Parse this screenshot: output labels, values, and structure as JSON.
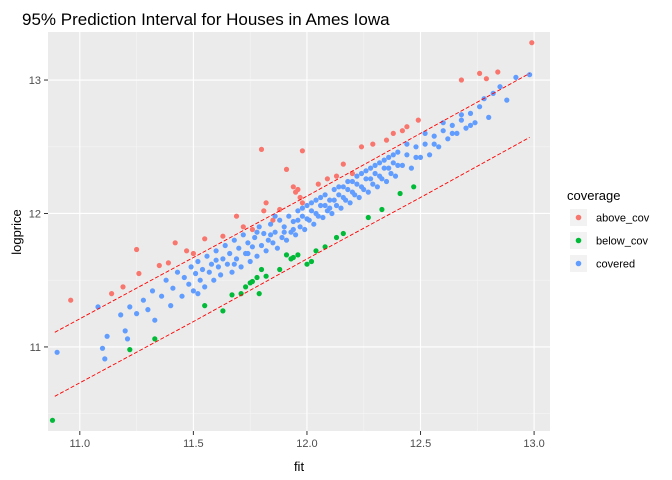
{
  "chart_data": {
    "type": "scatter",
    "title": "95% Prediction Interval for Houses in Ames Iowa",
    "xlabel": "fit",
    "ylabel": "logprice",
    "xlim": [
      10.86,
      13.07
    ],
    "ylim": [
      10.37,
      13.36
    ],
    "x_ticks": [
      11.0,
      11.5,
      12.0,
      12.5,
      13.0
    ],
    "x_tick_labels": [
      "11.0",
      "11.5",
      "12.0",
      "12.5",
      "13.0"
    ],
    "y_ticks": [
      11,
      12,
      13
    ],
    "y_tick_labels": [
      "11",
      "12",
      "13"
    ],
    "grid": true,
    "legend": {
      "title": "coverage",
      "placement": "right",
      "entries": [
        {
          "label": "above_cov",
          "color": "#F8766D"
        },
        {
          "label": "below_cov",
          "color": "#00BA38"
        },
        {
          "label": "covered",
          "color": "#619CFF"
        }
      ]
    },
    "interval_lines": {
      "color": "#FF0000",
      "style": "dashed",
      "upper": [
        [
          10.89,
          11.11
        ],
        [
          11.5,
          11.67
        ],
        [
          12.0,
          12.13
        ],
        [
          12.5,
          12.6
        ],
        [
          12.98,
          13.05
        ]
      ],
      "lower": [
        [
          10.89,
          10.63
        ],
        [
          11.5,
          11.19
        ],
        [
          12.0,
          11.66
        ],
        [
          12.5,
          12.12
        ],
        [
          12.98,
          12.57
        ]
      ]
    },
    "series": [
      {
        "name": "above_cov",
        "color": "#F8766D",
        "points": [
          [
            10.96,
            11.35
          ],
          [
            11.14,
            11.4
          ],
          [
            11.19,
            11.45
          ],
          [
            11.25,
            11.73
          ],
          [
            11.26,
            11.55
          ],
          [
            11.35,
            11.61
          ],
          [
            11.39,
            11.63
          ],
          [
            11.42,
            11.78
          ],
          [
            11.47,
            11.72
          ],
          [
            11.5,
            11.7
          ],
          [
            11.55,
            11.81
          ],
          [
            11.63,
            11.83
          ],
          [
            11.69,
            11.98
          ],
          [
            11.72,
            11.9
          ],
          [
            11.76,
            11.88
          ],
          [
            11.81,
            12.02
          ],
          [
            11.82,
            12.08
          ],
          [
            11.85,
            11.95
          ],
          [
            11.91,
            12.33
          ],
          [
            11.94,
            12.2
          ],
          [
            11.95,
            12.16
          ],
          [
            11.96,
            12.18
          ],
          [
            11.97,
            12.12
          ],
          [
            11.98,
            12.08
          ],
          [
            11.98,
            12.47
          ],
          [
            12.05,
            12.22
          ],
          [
            12.09,
            12.26
          ],
          [
            12.13,
            12.28
          ],
          [
            12.16,
            12.37
          ],
          [
            12.2,
            12.3
          ],
          [
            12.24,
            12.5
          ],
          [
            12.29,
            12.52
          ],
          [
            12.35,
            12.55
          ],
          [
            12.38,
            12.6
          ],
          [
            12.42,
            12.62
          ],
          [
            12.44,
            12.65
          ],
          [
            12.49,
            12.7
          ],
          [
            12.68,
            13.0
          ],
          [
            12.76,
            13.05
          ],
          [
            12.79,
            13.01
          ],
          [
            12.84,
            13.06
          ],
          [
            12.99,
            13.28
          ],
          [
            11.8,
            12.48
          ],
          [
            11.88,
            12.03
          ]
        ]
      },
      {
        "name": "below_cov",
        "color": "#00BA38",
        "points": [
          [
            10.88,
            10.45
          ],
          [
            11.22,
            10.98
          ],
          [
            11.33,
            11.06
          ],
          [
            11.55,
            11.31
          ],
          [
            11.63,
            11.27
          ],
          [
            11.67,
            11.39
          ],
          [
            11.71,
            11.4
          ],
          [
            11.73,
            11.45
          ],
          [
            11.75,
            11.48
          ],
          [
            11.76,
            11.49
          ],
          [
            11.78,
            11.52
          ],
          [
            11.79,
            11.4
          ],
          [
            11.8,
            11.58
          ],
          [
            11.82,
            11.53
          ],
          [
            11.88,
            11.58
          ],
          [
            11.91,
            11.69
          ],
          [
            11.93,
            11.66
          ],
          [
            11.94,
            11.67
          ],
          [
            11.96,
            11.69
          ],
          [
            12.0,
            11.62
          ],
          [
            12.02,
            11.64
          ],
          [
            12.04,
            11.72
          ],
          [
            12.08,
            11.75
          ],
          [
            12.13,
            11.82
          ],
          [
            12.16,
            11.85
          ],
          [
            12.27,
            11.97
          ],
          [
            12.33,
            12.03
          ],
          [
            12.41,
            12.15
          ],
          [
            12.47,
            12.2
          ]
        ]
      },
      {
        "name": "covered",
        "color": "#619CFF",
        "points": [
          [
            10.9,
            10.96
          ],
          [
            11.08,
            11.3
          ],
          [
            11.1,
            10.99
          ],
          [
            11.11,
            10.91
          ],
          [
            11.12,
            11.08
          ],
          [
            11.18,
            11.24
          ],
          [
            11.2,
            11.12
          ],
          [
            11.21,
            11.06
          ],
          [
            11.22,
            11.3
          ],
          [
            11.25,
            11.25
          ],
          [
            11.28,
            11.35
          ],
          [
            11.3,
            11.28
          ],
          [
            11.32,
            11.42
          ],
          [
            11.33,
            11.2
          ],
          [
            11.36,
            11.38
          ],
          [
            11.38,
            11.5
          ],
          [
            11.4,
            11.31
          ],
          [
            11.41,
            11.44
          ],
          [
            11.43,
            11.56
          ],
          [
            11.45,
            11.38
          ],
          [
            11.46,
            11.52
          ],
          [
            11.48,
            11.47
          ],
          [
            11.49,
            11.6
          ],
          [
            11.5,
            11.42
          ],
          [
            11.51,
            11.55
          ],
          [
            11.52,
            11.64
          ],
          [
            11.53,
            11.5
          ],
          [
            11.54,
            11.58
          ],
          [
            11.55,
            11.45
          ],
          [
            11.56,
            11.68
          ],
          [
            11.57,
            11.56
          ],
          [
            11.58,
            11.62
          ],
          [
            11.59,
            11.5
          ],
          [
            11.6,
            11.72
          ],
          [
            11.61,
            11.6
          ],
          [
            11.62,
            11.54
          ],
          [
            11.63,
            11.66
          ],
          [
            11.64,
            11.76
          ],
          [
            11.65,
            11.62
          ],
          [
            11.66,
            11.7
          ],
          [
            11.67,
            11.56
          ],
          [
            11.68,
            11.8
          ],
          [
            11.69,
            11.66
          ],
          [
            11.7,
            11.74
          ],
          [
            11.71,
            11.6
          ],
          [
            11.72,
            11.84
          ],
          [
            11.73,
            11.7
          ],
          [
            11.74,
            11.78
          ],
          [
            11.75,
            11.64
          ],
          [
            11.76,
            11.75
          ],
          [
            11.77,
            11.82
          ],
          [
            11.78,
            11.68
          ],
          [
            11.79,
            11.9
          ],
          [
            11.8,
            11.76
          ],
          [
            11.81,
            11.85
          ],
          [
            11.82,
            11.72
          ],
          [
            11.83,
            11.8
          ],
          [
            11.84,
            11.92
          ],
          [
            11.85,
            11.78
          ],
          [
            11.86,
            11.86
          ],
          [
            11.87,
            11.74
          ],
          [
            11.88,
            11.95
          ],
          [
            11.89,
            11.82
          ],
          [
            11.9,
            11.9
          ],
          [
            11.91,
            11.8
          ],
          [
            11.92,
            11.98
          ],
          [
            11.93,
            11.86
          ],
          [
            11.94,
            11.94
          ],
          [
            11.95,
            11.84
          ],
          [
            11.96,
            12.02
          ],
          [
            11.97,
            11.9
          ],
          [
            11.98,
            11.98
          ],
          [
            11.99,
            11.88
          ],
          [
            12.0,
            12.06
          ],
          [
            12.01,
            11.95
          ],
          [
            12.02,
            12.02
          ],
          [
            12.03,
            11.92
          ],
          [
            12.04,
            12.1
          ],
          [
            12.05,
            11.98
          ],
          [
            12.06,
            12.06
          ],
          [
            12.07,
            11.97
          ],
          [
            12.08,
            12.14
          ],
          [
            12.09,
            12.02
          ],
          [
            12.1,
            12.1
          ],
          [
            12.11,
            12.0
          ],
          [
            12.12,
            12.18
          ],
          [
            12.13,
            12.06
          ],
          [
            12.14,
            12.14
          ],
          [
            12.15,
            12.04
          ],
          [
            12.16,
            12.2
          ],
          [
            12.17,
            12.1
          ],
          [
            12.18,
            12.18
          ],
          [
            12.19,
            12.08
          ],
          [
            12.2,
            12.24
          ],
          [
            12.21,
            12.14
          ],
          [
            12.22,
            12.22
          ],
          [
            12.23,
            12.12
          ],
          [
            12.24,
            12.3
          ],
          [
            12.25,
            12.18
          ],
          [
            12.26,
            12.26
          ],
          [
            12.27,
            12.16
          ],
          [
            12.28,
            12.34
          ],
          [
            12.29,
            12.22
          ],
          [
            12.3,
            12.3
          ],
          [
            12.31,
            12.2
          ],
          [
            12.32,
            12.38
          ],
          [
            12.33,
            12.26
          ],
          [
            12.34,
            12.34
          ],
          [
            12.35,
            12.24
          ],
          [
            12.36,
            12.42
          ],
          [
            12.37,
            12.3
          ],
          [
            12.38,
            12.38
          ],
          [
            12.39,
            12.28
          ],
          [
            12.4,
            12.46
          ],
          [
            12.42,
            12.36
          ],
          [
            12.44,
            12.44
          ],
          [
            12.46,
            12.34
          ],
          [
            12.48,
            12.5
          ],
          [
            12.5,
            12.42
          ],
          [
            12.52,
            12.52
          ],
          [
            12.54,
            12.44
          ],
          [
            12.56,
            12.58
          ],
          [
            12.58,
            12.5
          ],
          [
            12.6,
            12.62
          ],
          [
            12.62,
            12.56
          ],
          [
            12.64,
            12.66
          ],
          [
            12.66,
            12.6
          ],
          [
            12.68,
            12.7
          ],
          [
            12.7,
            12.64
          ],
          [
            12.72,
            12.75
          ],
          [
            12.74,
            12.68
          ],
          [
            12.76,
            12.8
          ],
          [
            12.78,
            12.86
          ],
          [
            12.8,
            12.72
          ],
          [
            12.82,
            12.9
          ],
          [
            12.85,
            12.95
          ],
          [
            12.88,
            12.85
          ],
          [
            12.92,
            13.02
          ],
          [
            12.98,
            13.04
          ],
          [
            11.52,
            11.4
          ],
          [
            11.6,
            11.65
          ],
          [
            11.68,
            11.62
          ],
          [
            11.74,
            11.7
          ],
          [
            11.78,
            11.86
          ],
          [
            11.84,
            11.84
          ],
          [
            11.86,
            11.98
          ],
          [
            11.9,
            11.86
          ],
          [
            11.94,
            11.88
          ],
          [
            11.96,
            11.95
          ],
          [
            11.98,
            12.04
          ],
          [
            12.0,
            11.96
          ],
          [
            12.02,
            12.08
          ],
          [
            12.04,
            12.0
          ],
          [
            12.06,
            12.12
          ],
          [
            12.08,
            12.06
          ],
          [
            12.1,
            12.04
          ],
          [
            12.12,
            12.1
          ],
          [
            12.14,
            12.2
          ],
          [
            12.16,
            12.12
          ],
          [
            12.18,
            12.24
          ],
          [
            12.2,
            12.16
          ],
          [
            12.22,
            12.28
          ],
          [
            12.24,
            12.2
          ],
          [
            12.26,
            12.32
          ],
          [
            12.28,
            12.26
          ],
          [
            12.3,
            12.36
          ],
          [
            12.32,
            12.28
          ],
          [
            12.34,
            12.4
          ],
          [
            12.36,
            12.34
          ],
          [
            12.38,
            12.44
          ],
          [
            12.4,
            12.36
          ],
          [
            12.44,
            12.52
          ],
          [
            12.48,
            12.42
          ],
          [
            12.52,
            12.6
          ],
          [
            12.56,
            12.52
          ],
          [
            12.6,
            12.68
          ],
          [
            12.64,
            12.6
          ],
          [
            12.68,
            12.74
          ],
          [
            12.72,
            12.66
          ]
        ]
      }
    ]
  }
}
